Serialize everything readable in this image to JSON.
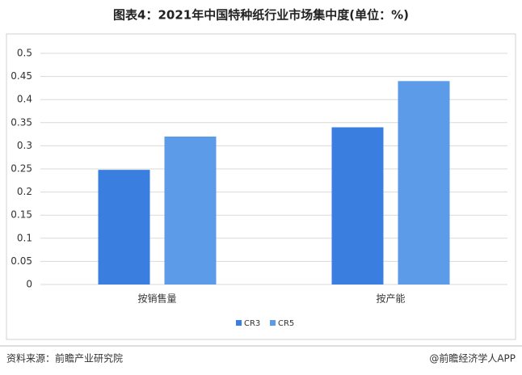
{
  "chart_data": {
    "type": "bar",
    "title": "图表4：2021年中国特种纸行业市场集中度(单位：%)",
    "categories": [
      "按销售量",
      "按产能"
    ],
    "series": [
      {
        "name": "CR3",
        "color": "#3a7fe0",
        "values": [
          0.248,
          0.34
        ]
      },
      {
        "name": "CR5",
        "color": "#5b9be8",
        "values": [
          0.32,
          0.44
        ]
      }
    ],
    "ylim": [
      0,
      0.5
    ],
    "yticks": [
      0,
      0.05,
      0.1,
      0.15,
      0.2,
      0.25,
      0.3,
      0.35,
      0.4,
      0.45,
      0.5
    ],
    "grid": true,
    "legend": "bottom"
  },
  "footer": {
    "source": "资料来源：前瞻产业研究院",
    "brand": "@前瞻经济学人APP"
  }
}
